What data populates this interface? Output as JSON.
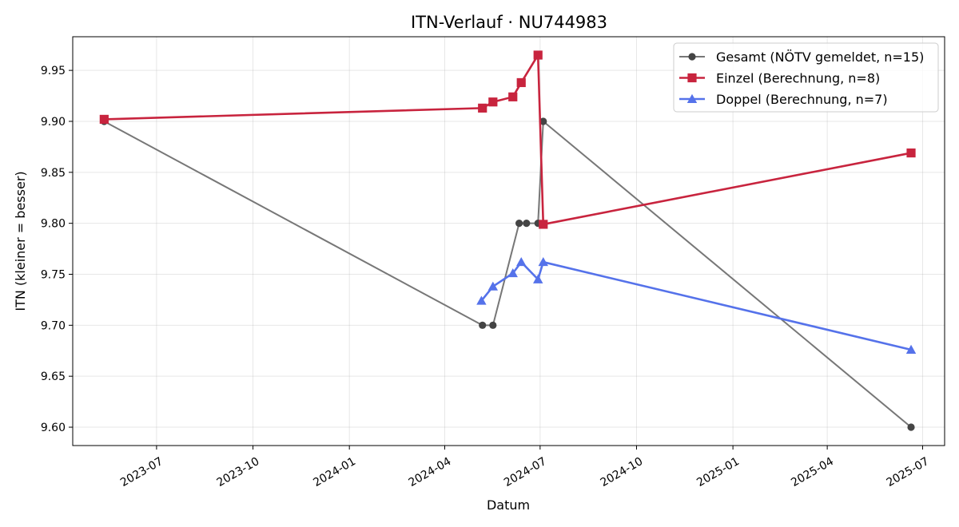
{
  "chart_data": {
    "type": "line",
    "title": "ITN-Verlauf · NU744983",
    "xlabel": "Datum",
    "ylabel": "ITN  (kleiner = besser)",
    "x_axis_type": "date",
    "xlim": [
      "2023-04-12",
      "2025-07-22"
    ],
    "ylim": [
      9.582,
      9.983
    ],
    "x_ticks": [
      "2023-07",
      "2023-10",
      "2024-01",
      "2024-04",
      "2024-07",
      "2024-10",
      "2025-01",
      "2025-04",
      "2025-07"
    ],
    "y_ticks": [
      9.6,
      9.65,
      9.7,
      9.75,
      9.8,
      9.85,
      9.9,
      9.95
    ],
    "y_tick_labels": [
      "9.60",
      "9.65",
      "9.70",
      "9.75",
      "9.80",
      "9.85",
      "9.90",
      "9.95"
    ],
    "grid": true,
    "legend_position": "top-right",
    "series": [
      {
        "name": "Gesamt (NÖTV gemeldet, n=15)",
        "color": "#777777",
        "marker_color": "#444444",
        "marker": "circle",
        "line_width": 2,
        "points": [
          {
            "x": "2023-05-12",
            "y": 9.9
          },
          {
            "x": "2024-05-07",
            "y": 9.7
          },
          {
            "x": "2024-05-17",
            "y": 9.7
          },
          {
            "x": "2024-06-11",
            "y": 9.8
          },
          {
            "x": "2024-06-18",
            "y": 9.8
          },
          {
            "x": "2024-06-29",
            "y": 9.8
          },
          {
            "x": "2024-07-04",
            "y": 9.9
          },
          {
            "x": "2025-06-20",
            "y": 9.6
          }
        ]
      },
      {
        "name": "Einzel (Berechnung, n=8)",
        "color": "#c8243e",
        "marker": "square",
        "line_width": 2.6,
        "points": [
          {
            "x": "2023-05-12",
            "y": 9.902
          },
          {
            "x": "2024-05-07",
            "y": 9.913
          },
          {
            "x": "2024-05-17",
            "y": 9.919
          },
          {
            "x": "2024-06-05",
            "y": 9.924
          },
          {
            "x": "2024-06-13",
            "y": 9.938
          },
          {
            "x": "2024-06-29",
            "y": 9.965
          },
          {
            "x": "2024-07-04",
            "y": 9.799
          },
          {
            "x": "2025-06-20",
            "y": 9.869
          }
        ]
      },
      {
        "name": "Doppel (Berechnung, n=7)",
        "color": "#5572ea",
        "marker": "triangle",
        "line_width": 2.6,
        "points": [
          {
            "x": "2024-05-06",
            "y": 9.724
          },
          {
            "x": "2024-05-17",
            "y": 9.738
          },
          {
            "x": "2024-06-05",
            "y": 9.751
          },
          {
            "x": "2024-06-13",
            "y": 9.762
          },
          {
            "x": "2024-06-29",
            "y": 9.745
          },
          {
            "x": "2024-07-04",
            "y": 9.762
          },
          {
            "x": "2025-06-20",
            "y": 9.676
          }
        ]
      }
    ]
  }
}
